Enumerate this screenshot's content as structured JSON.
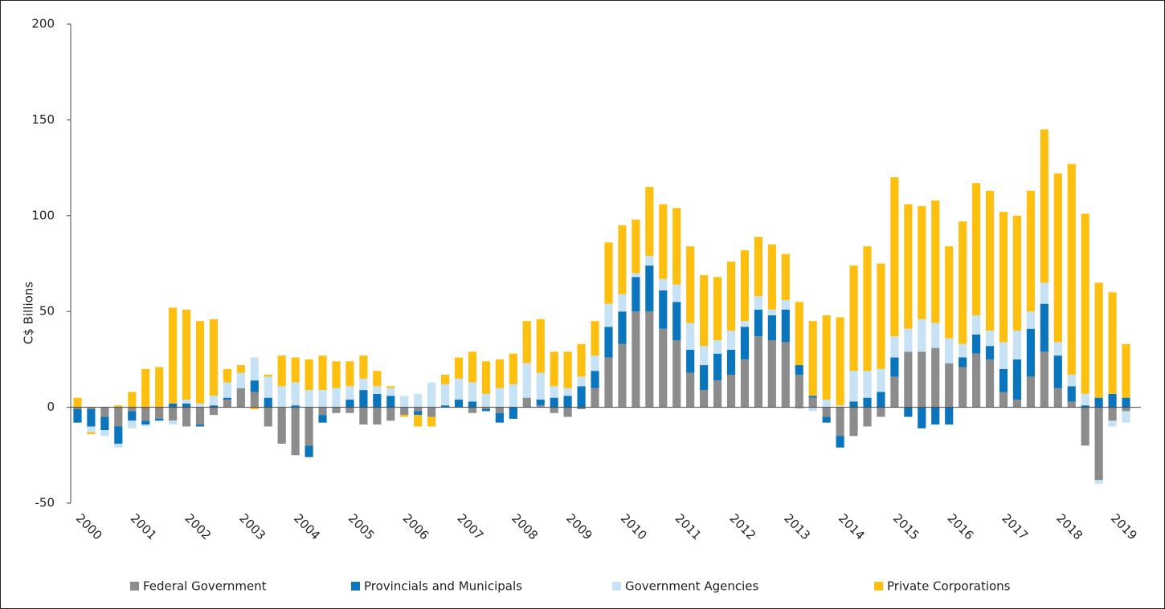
{
  "chart_data": {
    "type": "stacked_bar",
    "y_label": "C$ Billions",
    "categories": [
      "2000",
      null,
      null,
      null,
      "2001",
      null,
      null,
      null,
      "2002",
      null,
      null,
      null,
      "2003",
      null,
      null,
      null,
      "2004",
      null,
      null,
      null,
      "2005",
      null,
      null,
      null,
      "2006",
      null,
      null,
      null,
      "2007",
      null,
      null,
      null,
      "2008",
      null,
      null,
      null,
      "2009",
      null,
      null,
      null,
      "2010",
      null,
      null,
      null,
      "2011",
      null,
      null,
      null,
      "2012",
      null,
      null,
      null,
      "2013",
      null,
      null,
      null,
      "2014",
      null,
      null,
      null,
      "2015",
      null,
      null,
      null,
      "2016",
      null,
      null,
      null,
      "2017",
      null,
      null,
      null,
      "2018",
      null,
      null,
      null,
      "2019",
      null
    ],
    "series": [
      {
        "name": "Federal Government",
        "color": "#8c8c8c",
        "values": [
          -1,
          -1,
          -5,
          -10,
          -2,
          -7,
          -6,
          -7,
          -10,
          -9,
          -4,
          4,
          10,
          8,
          -10,
          -19,
          -25,
          -20,
          -4,
          -3,
          -3,
          -9,
          -9,
          -7,
          -4,
          -2,
          -5,
          0,
          0,
          -3,
          -1,
          -3,
          0,
          5,
          1,
          -3,
          -5,
          -1,
          10,
          26,
          33,
          50,
          50,
          41,
          35,
          18,
          9,
          14,
          17,
          25,
          37,
          35,
          34,
          17,
          5,
          -5,
          -15,
          -15,
          -10,
          -5,
          16,
          29,
          29,
          31,
          23,
          21,
          28,
          25,
          8,
          4,
          16,
          29,
          10,
          3,
          -20,
          -38,
          -7,
          -2
        ]
      },
      {
        "name": "Provincials and Municipals",
        "color": "#0a75bd",
        "values": [
          -7,
          -9,
          -7,
          -9,
          -5,
          -2,
          -1,
          2,
          2,
          -1,
          1,
          1,
          0,
          6,
          5,
          0,
          1,
          -6,
          -4,
          0,
          4,
          9,
          7,
          6,
          0,
          -2,
          0,
          1,
          4,
          3,
          -1,
          -5,
          -6,
          0,
          3,
          5,
          6,
          11,
          9,
          16,
          17,
          18,
          24,
          20,
          20,
          12,
          13,
          14,
          13,
          17,
          14,
          13,
          17,
          5,
          1,
          -3,
          -6,
          3,
          5,
          8,
          10,
          -5,
          -11,
          -9,
          -9,
          5,
          10,
          7,
          12,
          21,
          25,
          25,
          17,
          8,
          1,
          5,
          7,
          5
        ]
      },
      {
        "name": "Government Agencies",
        "color": "#c6e2f4",
        "values": [
          0,
          -3,
          -3,
          -2,
          -4,
          -1,
          0,
          -2,
          2,
          2,
          5,
          8,
          8,
          12,
          11,
          11,
          12,
          9,
          9,
          10,
          7,
          6,
          4,
          4,
          6,
          7,
          13,
          11,
          11,
          10,
          7,
          10,
          12,
          18,
          14,
          6,
          4,
          5,
          8,
          12,
          9,
          2,
          5,
          6,
          9,
          14,
          10,
          7,
          10,
          3,
          7,
          3,
          5,
          -1,
          -2,
          4,
          1,
          16,
          14,
          12,
          11,
          12,
          17,
          13,
          13,
          7,
          10,
          8,
          14,
          15,
          9,
          11,
          7,
          6,
          6,
          -2,
          -3,
          -6
        ]
      },
      {
        "name": "Private Corporations",
        "color": "#fdc010",
        "values": [
          5,
          -1,
          0,
          1,
          8,
          20,
          21,
          50,
          47,
          43,
          40,
          7,
          4,
          -1,
          1,
          16,
          13,
          16,
          18,
          14,
          13,
          12,
          8,
          1,
          -1,
          -6,
          -5,
          5,
          11,
          16,
          17,
          15,
          16,
          22,
          28,
          18,
          19,
          17,
          18,
          32,
          36,
          28,
          36,
          39,
          40,
          40,
          37,
          33,
          36,
          37,
          31,
          34,
          24,
          33,
          39,
          44,
          46,
          55,
          65,
          55,
          83,
          65,
          59,
          64,
          48,
          64,
          69,
          73,
          68,
          60,
          63,
          80,
          88,
          110,
          94,
          60,
          53,
          28
        ]
      }
    ],
    "ylim": [
      -50,
      200
    ],
    "yticks": [
      -50,
      0,
      50,
      100,
      150,
      200
    ]
  }
}
